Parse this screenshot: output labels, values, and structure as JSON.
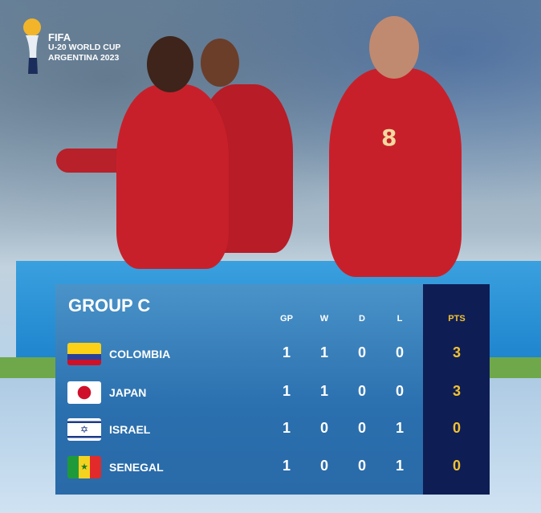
{
  "logo": {
    "line1": "FIFA",
    "line2": "U-20 WORLD CUP",
    "line3": "ARGENTINA 2023"
  },
  "table": {
    "title": "GROUP C",
    "headers": [
      "GP",
      "W",
      "D",
      "L",
      "PTS"
    ],
    "rows": [
      {
        "team": "COLOMBIA",
        "flag": "colombia-flag",
        "gp": "1",
        "w": "1",
        "d": "0",
        "l": "0",
        "pts": "3"
      },
      {
        "team": "JAPAN",
        "flag": "japan-flag",
        "gp": "1",
        "w": "1",
        "d": "0",
        "l": "0",
        "pts": "3"
      },
      {
        "team": "ISRAEL",
        "flag": "israel-flag",
        "gp": "1",
        "w": "0",
        "d": "0",
        "l": "1",
        "pts": "0"
      },
      {
        "team": "SENEGAL",
        "flag": "senegal-flag",
        "gp": "1",
        "w": "0",
        "d": "0",
        "l": "1",
        "pts": "0"
      }
    ]
  },
  "colors": {
    "table_bg": "#2a6fae",
    "pts_col": "#0f1d55",
    "pts_text": "#f2c230",
    "jersey": "#c8202a"
  }
}
